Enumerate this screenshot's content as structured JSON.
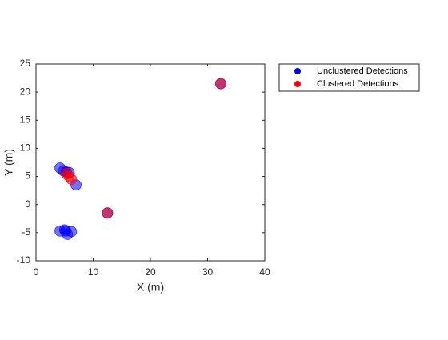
{
  "chart_data": {
    "type": "scatter",
    "x_label": "X (m)",
    "y_label": "Y (m)",
    "xlim": [
      0,
      40
    ],
    "xticks": [
      0,
      10,
      20,
      30,
      40
    ],
    "ylim": [
      -10,
      25
    ],
    "yticks": [
      -10,
      -5,
      0,
      5,
      10,
      15,
      20,
      25
    ],
    "legend_position": "outside-right",
    "series": [
      {
        "name": "Unclustered Detections",
        "color": "#0000ff",
        "x": [
          4.2,
          4.8,
          5.3,
          5.8,
          7.0,
          4.2,
          5.0,
          5.5,
          6.2,
          5.2,
          32.3,
          12.5
        ],
        "y": [
          6.5,
          6.0,
          5.8,
          5.7,
          3.5,
          -4.7,
          -4.5,
          -5.3,
          -4.8,
          -4.7,
          21.5,
          -1.5
        ]
      },
      {
        "name": "Clustered Detections",
        "color": "#ff0000",
        "x": [
          32.3,
          12.5,
          5.8,
          6.2,
          5.3
        ],
        "y": [
          21.5,
          -1.5,
          5.0,
          4.5,
          5.5
        ]
      }
    ]
  }
}
